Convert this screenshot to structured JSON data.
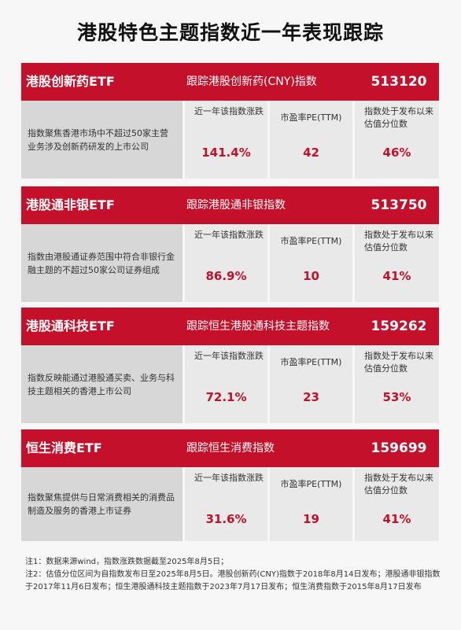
{
  "title": "港股特色主题指数近一年表现跟踪",
  "metric_labels": {
    "change": "近一年该指数涨跌",
    "pe": "市盈率PE(TTM)",
    "percentile": "指数处于发布以来估值分位数"
  },
  "cards": [
    {
      "name": "港股创新药ETF",
      "track": "跟踪港股创新药(CNY)指数",
      "code": "513120",
      "desc": "指数聚焦香港市场中不超过50家主营业务涉及创新药研发的上市公司",
      "change": "141.4%",
      "pe": "42",
      "percentile": "46%"
    },
    {
      "name": "港股通非银ETF",
      "track": "跟踪港股通非银指数",
      "code": "513750",
      "desc": "指数由港股通证券范围中符合非银行金融主题的不超过50家公司证券组成",
      "change": "86.9%",
      "pe": "10",
      "percentile": "41%"
    },
    {
      "name": "港股通科技ETF",
      "track": "跟踪恒生港股通科技主题指数",
      "code": "159262",
      "desc": "指数反映能通过港股通买卖、业务与科技主题相关的香港上市公司",
      "change": "72.1%",
      "pe": "23",
      "percentile": "53%"
    },
    {
      "name": "恒生消费ETF",
      "track": "跟踪恒生消费指数",
      "code": "159699",
      "desc": "指数聚焦提供与日常消费相关的消费品制造及服务的香港上市证券",
      "change": "31.6%",
      "pe": "19",
      "percentile": "41%"
    }
  ],
  "notes": {
    "note1": "注1：数据来源wind，指数涨跌数据截至2025年8月5日；",
    "note2": "注2：估值分位区间为自指数发布日至2025年8月5日。港股创新药(CNY)指数于2018年8月14日发布；港股通非银指数于2017年11月6日发布；恒生港股通科技主题指数于2023年7月17日发布；恒生消费指数于2015年8月17日发布"
  }
}
